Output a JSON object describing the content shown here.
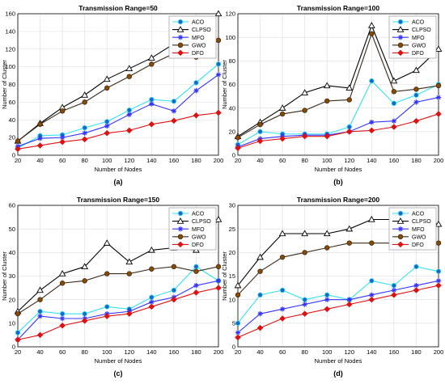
{
  "chart_data": [
    {
      "type": "line",
      "panel_label": "(a)",
      "title": "Transmission Range=50",
      "xlabel": "Number of Nodes",
      "ylabel": "Number of Cluster",
      "x": [
        20,
        40,
        60,
        80,
        100,
        120,
        140,
        160,
        180,
        200
      ],
      "xlim": [
        20,
        200
      ],
      "ylim": [
        0,
        160
      ],
      "yticks": [
        0,
        20,
        40,
        60,
        80,
        100,
        120,
        140,
        160
      ],
      "legend_position": "top-right",
      "series": [
        {
          "name": "ACO",
          "values": [
            8,
            22,
            23,
            31,
            38,
            51,
            63,
            61,
            82,
            103
          ]
        },
        {
          "name": "CLPSO",
          "values": [
            16,
            36,
            54,
            68,
            86,
            98,
            110,
            126,
            138,
            160
          ]
        },
        {
          "name": "MFO",
          "values": [
            10,
            19,
            20,
            25,
            33,
            46,
            58,
            50,
            73,
            91
          ]
        },
        {
          "name": "GWO",
          "values": [
            16,
            35,
            50,
            60,
            76,
            89,
            103,
            115,
            111,
            130
          ]
        },
        {
          "name": "DFO",
          "values": [
            7,
            11,
            15,
            18,
            25,
            28,
            35,
            39,
            45,
            48
          ]
        }
      ]
    },
    {
      "type": "line",
      "panel_label": "(b)",
      "title": "Transmission Range=100",
      "xlabel": "Number of Nodes",
      "ylabel": "Number of Cluster",
      "x": [
        20,
        40,
        60,
        80,
        100,
        120,
        140,
        160,
        180,
        200
      ],
      "xlim": [
        20,
        200
      ],
      "ylim": [
        0,
        120
      ],
      "yticks": [
        0,
        20,
        40,
        60,
        80,
        100,
        120
      ],
      "legend_position": "top-right",
      "series": [
        {
          "name": "ACO",
          "values": [
            9,
            20,
            18,
            18,
            18,
            24,
            63,
            44,
            51,
            60
          ]
        },
        {
          "name": "CLPSO",
          "values": [
            16,
            28,
            40,
            53,
            59,
            57,
            110,
            63,
            72,
            90
          ]
        },
        {
          "name": "MFO",
          "values": [
            7,
            14,
            16,
            17,
            17,
            20,
            28,
            29,
            45,
            49
          ]
        },
        {
          "name": "GWO",
          "values": [
            15,
            26,
            35,
            38,
            46,
            47,
            103,
            54,
            56,
            59
          ]
        },
        {
          "name": "DFO",
          "values": [
            6,
            12,
            14,
            16,
            16,
            20,
            21,
            24,
            29,
            35
          ]
        }
      ]
    },
    {
      "type": "line",
      "panel_label": "(c)",
      "title": "Transmission Range=150",
      "xlabel": "Number of Nodes",
      "ylabel": "Number of Cluster",
      "x": [
        20,
        40,
        60,
        80,
        100,
        120,
        140,
        160,
        180,
        200
      ],
      "xlim": [
        20,
        200
      ],
      "ylim": [
        0,
        60
      ],
      "yticks": [
        0,
        10,
        20,
        30,
        40,
        50,
        60
      ],
      "legend_position": "top-right",
      "series": [
        {
          "name": "ACO",
          "values": [
            6,
            15,
            14,
            14,
            17,
            16,
            21,
            24,
            34,
            28
          ]
        },
        {
          "name": "CLPSO",
          "values": [
            15,
            24,
            31,
            34,
            44,
            36,
            41,
            42,
            41,
            54
          ]
        },
        {
          "name": "MFO",
          "values": [
            3,
            13,
            12,
            12,
            14,
            15,
            19,
            21,
            26,
            28
          ]
        },
        {
          "name": "GWO",
          "values": [
            14,
            20,
            27,
            28,
            31,
            31,
            33,
            34,
            32,
            34
          ]
        },
        {
          "name": "DFO",
          "values": [
            3,
            5,
            9,
            11,
            13,
            14,
            17,
            20,
            23,
            25
          ]
        }
      ]
    },
    {
      "type": "line",
      "panel_label": "(d)",
      "title": "Transmission Range=200",
      "xlabel": "Number of Nodes",
      "ylabel": "Number of Cluster",
      "x": [
        20,
        40,
        60,
        80,
        100,
        120,
        140,
        160,
        180,
        200
      ],
      "xlim": [
        20,
        200
      ],
      "ylim": [
        0,
        30
      ],
      "yticks": [
        0,
        5,
        10,
        15,
        20,
        25,
        30
      ],
      "legend_position": "top-right",
      "series": [
        {
          "name": "ACO",
          "values": [
            5,
            11,
            12,
            10,
            11,
            10,
            14,
            13,
            17,
            16
          ]
        },
        {
          "name": "CLPSO",
          "values": [
            13,
            19,
            24,
            24,
            24,
            25,
            27,
            27,
            27,
            26
          ]
        },
        {
          "name": "MFO",
          "values": [
            3,
            7,
            8,
            9,
            10,
            10,
            11,
            12,
            13,
            14
          ]
        },
        {
          "name": "GWO",
          "values": [
            11,
            16,
            19,
            20,
            21,
            22,
            22,
            22,
            22,
            22
          ]
        },
        {
          "name": "DFO",
          "values": [
            2,
            4,
            6,
            7,
            8,
            9,
            10,
            11,
            12,
            13
          ]
        }
      ]
    }
  ],
  "style": {
    "colors": {
      "ACO": "#33e0f0",
      "CLPSO": "#000000",
      "MFO": "#3333ff",
      "GWO": "#3a2a1a",
      "DFO": "#dd1111"
    },
    "markers": {
      "ACO": "circle",
      "CLPSO": "triangle",
      "MFO": "star",
      "GWO": "circle",
      "DFO": "diamond"
    },
    "marker_fill": {
      "ACO": "#1a66cc",
      "CLPSO": "#ffffff",
      "MFO": "#3333ff",
      "GWO": "#8a4a00",
      "DFO": "#dd1111"
    }
  }
}
